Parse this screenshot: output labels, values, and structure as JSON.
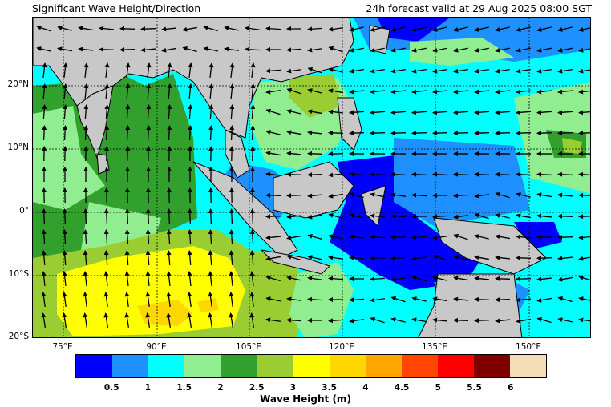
{
  "header": {
    "title": "Significant Wave Height/Direction",
    "forecast": "24h forecast valid at 29 Aug 2025 08:00 SGT"
  },
  "axes": {
    "lat_labels": [
      "20°N",
      "10°N",
      "0°",
      "10°S",
      "20°S"
    ],
    "lon_labels": [
      "75°E",
      "90°E",
      "105°E",
      "120°E",
      "135°E",
      "150°E"
    ]
  },
  "colorbar": {
    "title": "Wave Height (m)",
    "ticks": [
      "0.5",
      "1",
      "1.5",
      "2",
      "2.5",
      "3",
      "3.5",
      "4",
      "4.5",
      "5",
      "5.5",
      "6"
    ],
    "colors": [
      "#0000ff",
      "#1e90ff",
      "#00ffff",
      "#90ee90",
      "#32a02d",
      "#9acd32",
      "#ffff00",
      "#ffd700",
      "#ffa500",
      "#ff4500",
      "#ff0000",
      "#800000",
      "#f5deb3"
    ]
  },
  "map_colors": {
    "land": "#c8c8c8",
    "ocean_base": "#00ffff"
  }
}
